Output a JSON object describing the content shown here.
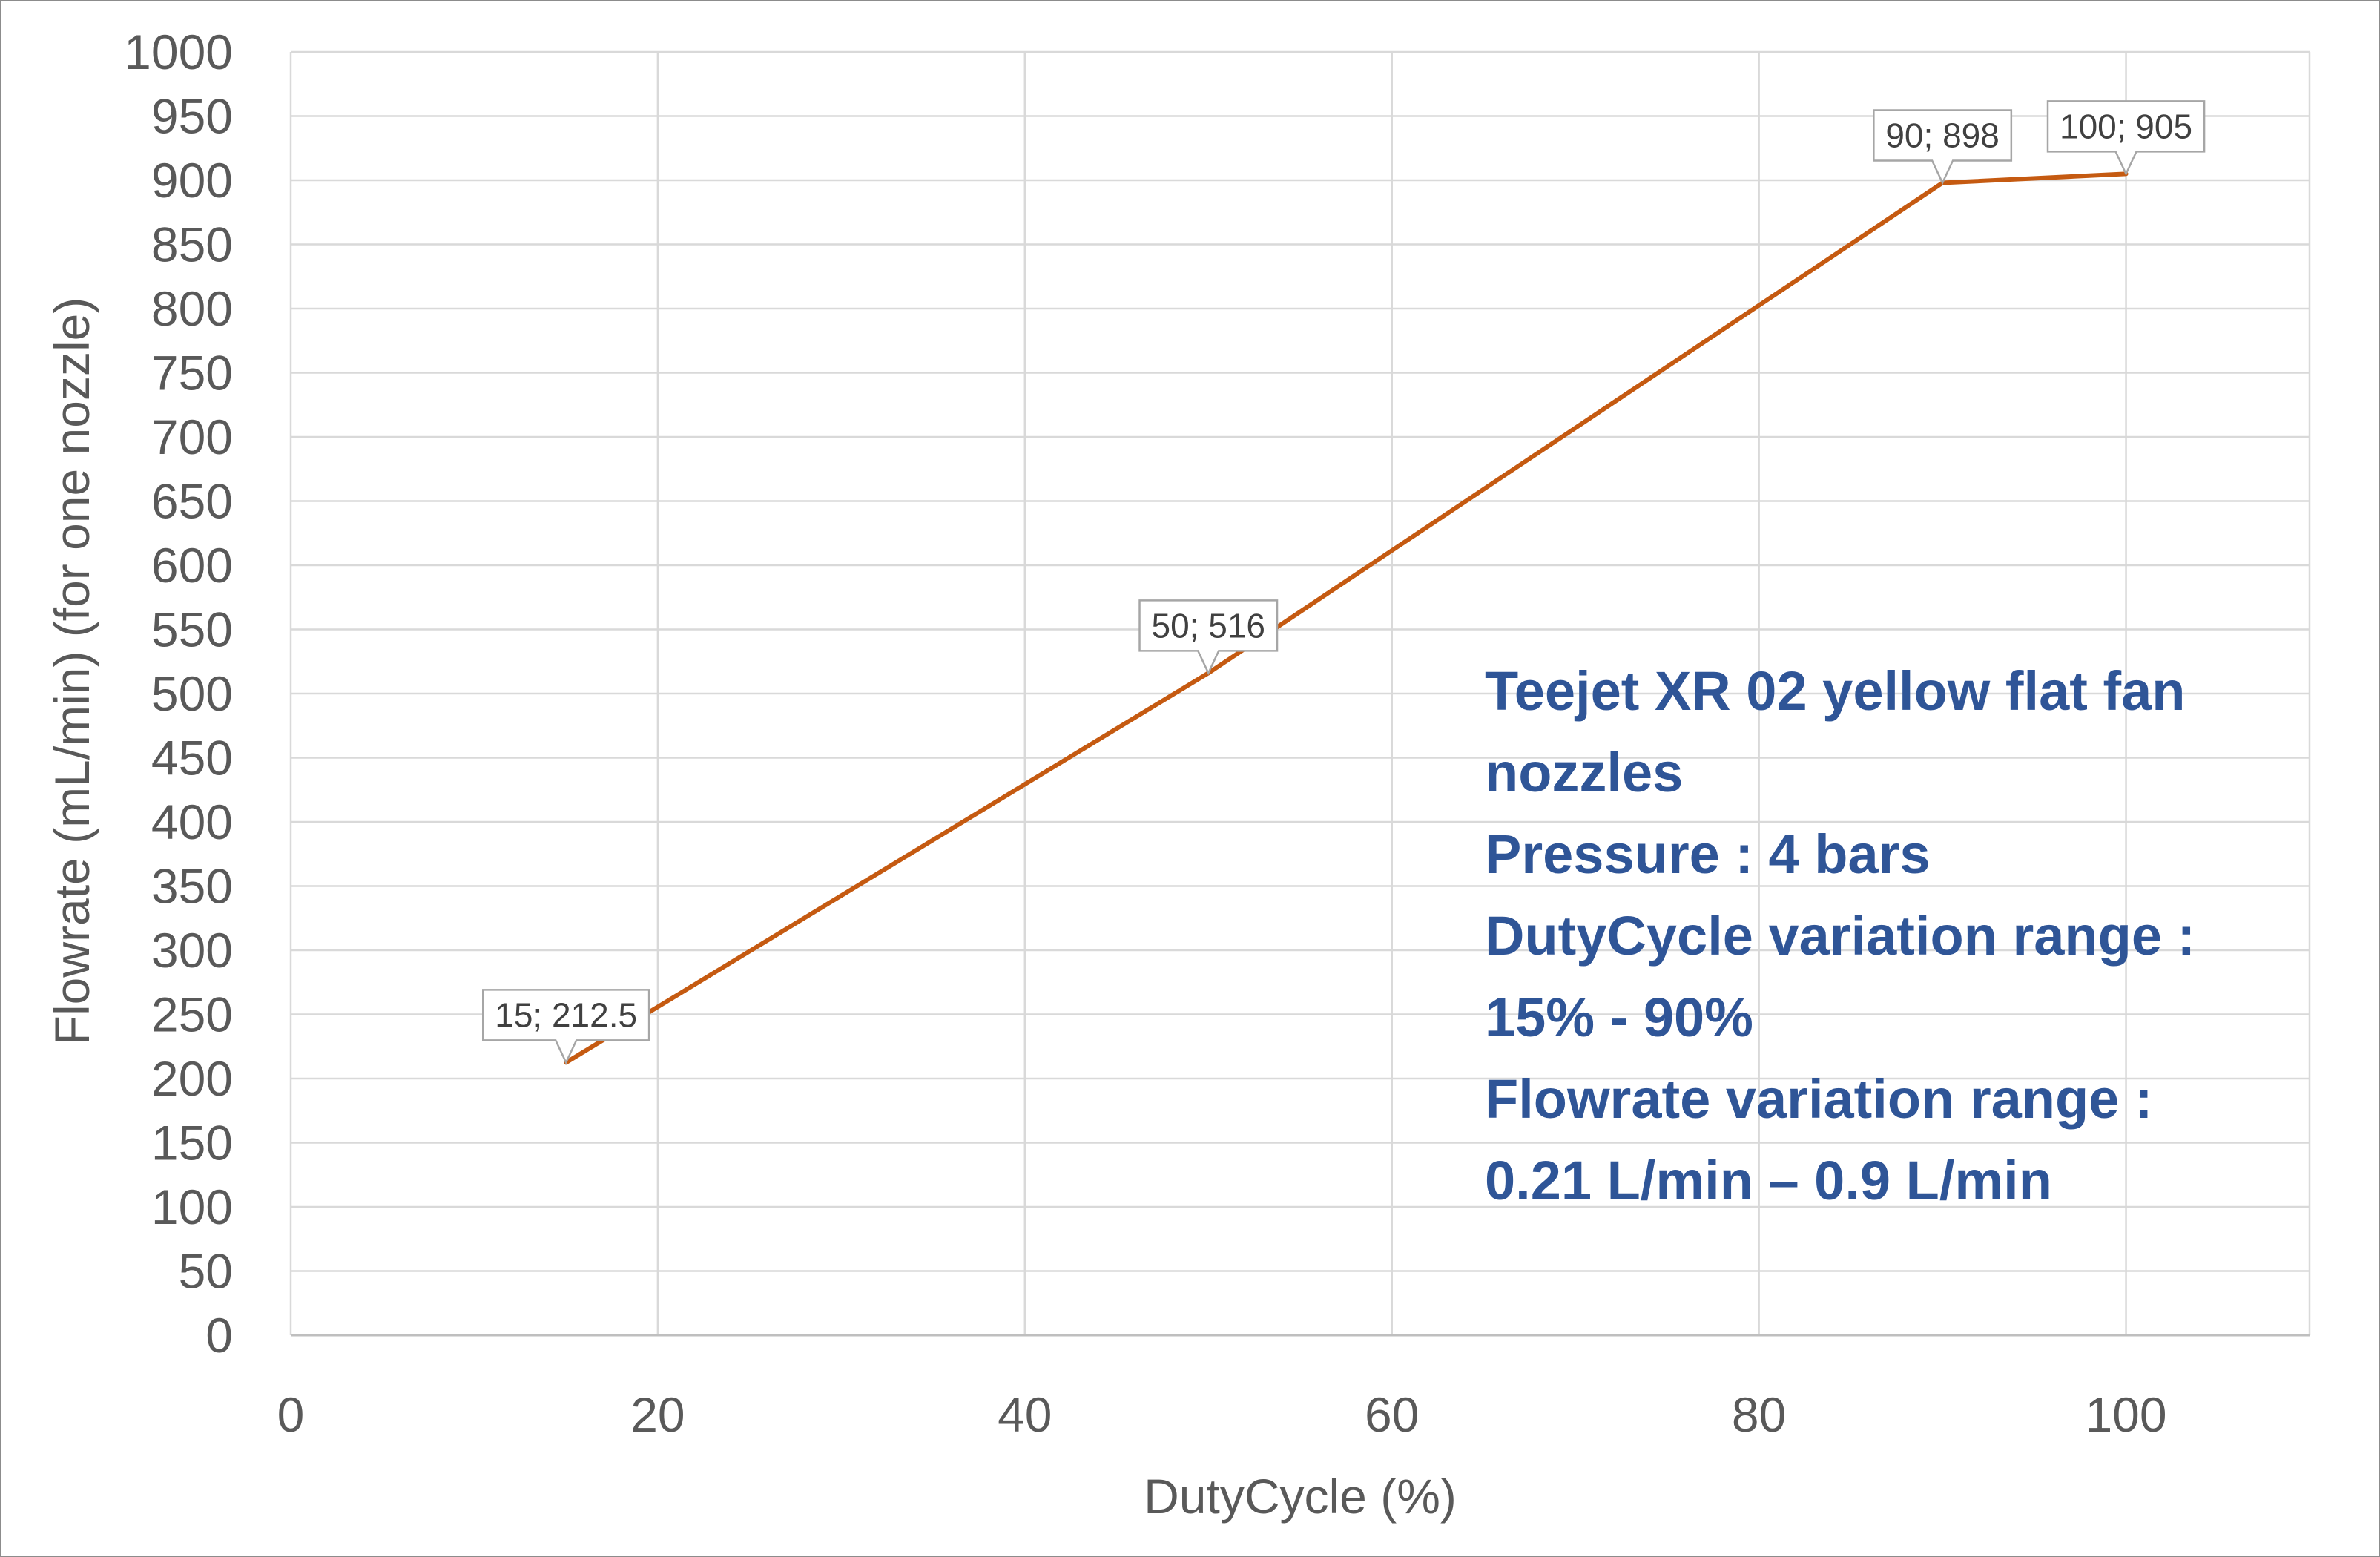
{
  "chart_data": {
    "type": "line",
    "title": "",
    "xlabel": "DutyCycle (%)",
    "ylabel": "Flowrate (mL/min) (for one nozzle)",
    "xlim": [
      0,
      110
    ],
    "ylim": [
      0,
      1000
    ],
    "x_ticks": [
      "0",
      "20",
      "40",
      "60",
      "80",
      "100"
    ],
    "y_ticks": [
      "0",
      "50",
      "100",
      "150",
      "200",
      "250",
      "300",
      "350",
      "400",
      "450",
      "500",
      "550",
      "600",
      "650",
      "700",
      "750",
      "800",
      "850",
      "900",
      "950",
      "1000"
    ],
    "grid": true,
    "series": [
      {
        "color": "#c55a11",
        "points": [
          {
            "x": 15,
            "y": 212.5
          },
          {
            "x": 50,
            "y": 516
          },
          {
            "x": 90,
            "y": 898
          },
          {
            "x": 100,
            "y": 905
          }
        ]
      }
    ],
    "data_labels": [
      "15; 212.5",
      "50; 516",
      "90; 898",
      "100; 905"
    ],
    "annotation": [
      "Teejet XR 02 yellow flat fan",
      "nozzles",
      "Pressure : 4 bars",
      "DutyCycle variation range :",
      "15% - 90%",
      "Flowrate variation range :",
      "0.21 L/min – 0.9 L/min"
    ],
    "annotation_color": "#2f5597"
  }
}
